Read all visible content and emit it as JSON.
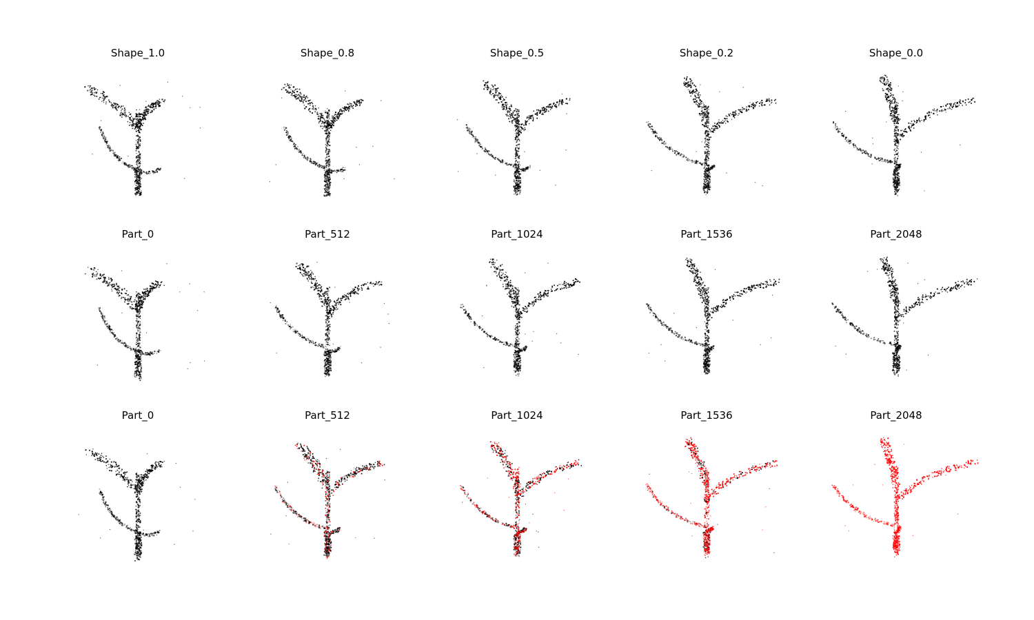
{
  "figure": {
    "rows": [
      {
        "kind": "shape",
        "titles": [
          "Shape_1.0",
          "Shape_0.8",
          "Shape_0.5",
          "Shape_0.2",
          "Shape_0.0"
        ],
        "red_share": [
          0,
          0,
          0,
          0,
          0
        ]
      },
      {
        "kind": "part",
        "titles": [
          "Part_0",
          "Part_512",
          "Part_1024",
          "Part_1536",
          "Part_2048"
        ],
        "red_share": [
          0,
          0,
          0,
          0,
          0
        ]
      },
      {
        "kind": "part-colored",
        "titles": [
          "Part_0",
          "Part_512",
          "Part_1024",
          "Part_1536",
          "Part_2048"
        ],
        "red_share": [
          0,
          0.25,
          0.5,
          0.75,
          1.0
        ]
      }
    ],
    "colors": {
      "points": "#000000",
      "highlight": "#ff0000",
      "title": "#000000",
      "background": "#ffffff"
    }
  }
}
